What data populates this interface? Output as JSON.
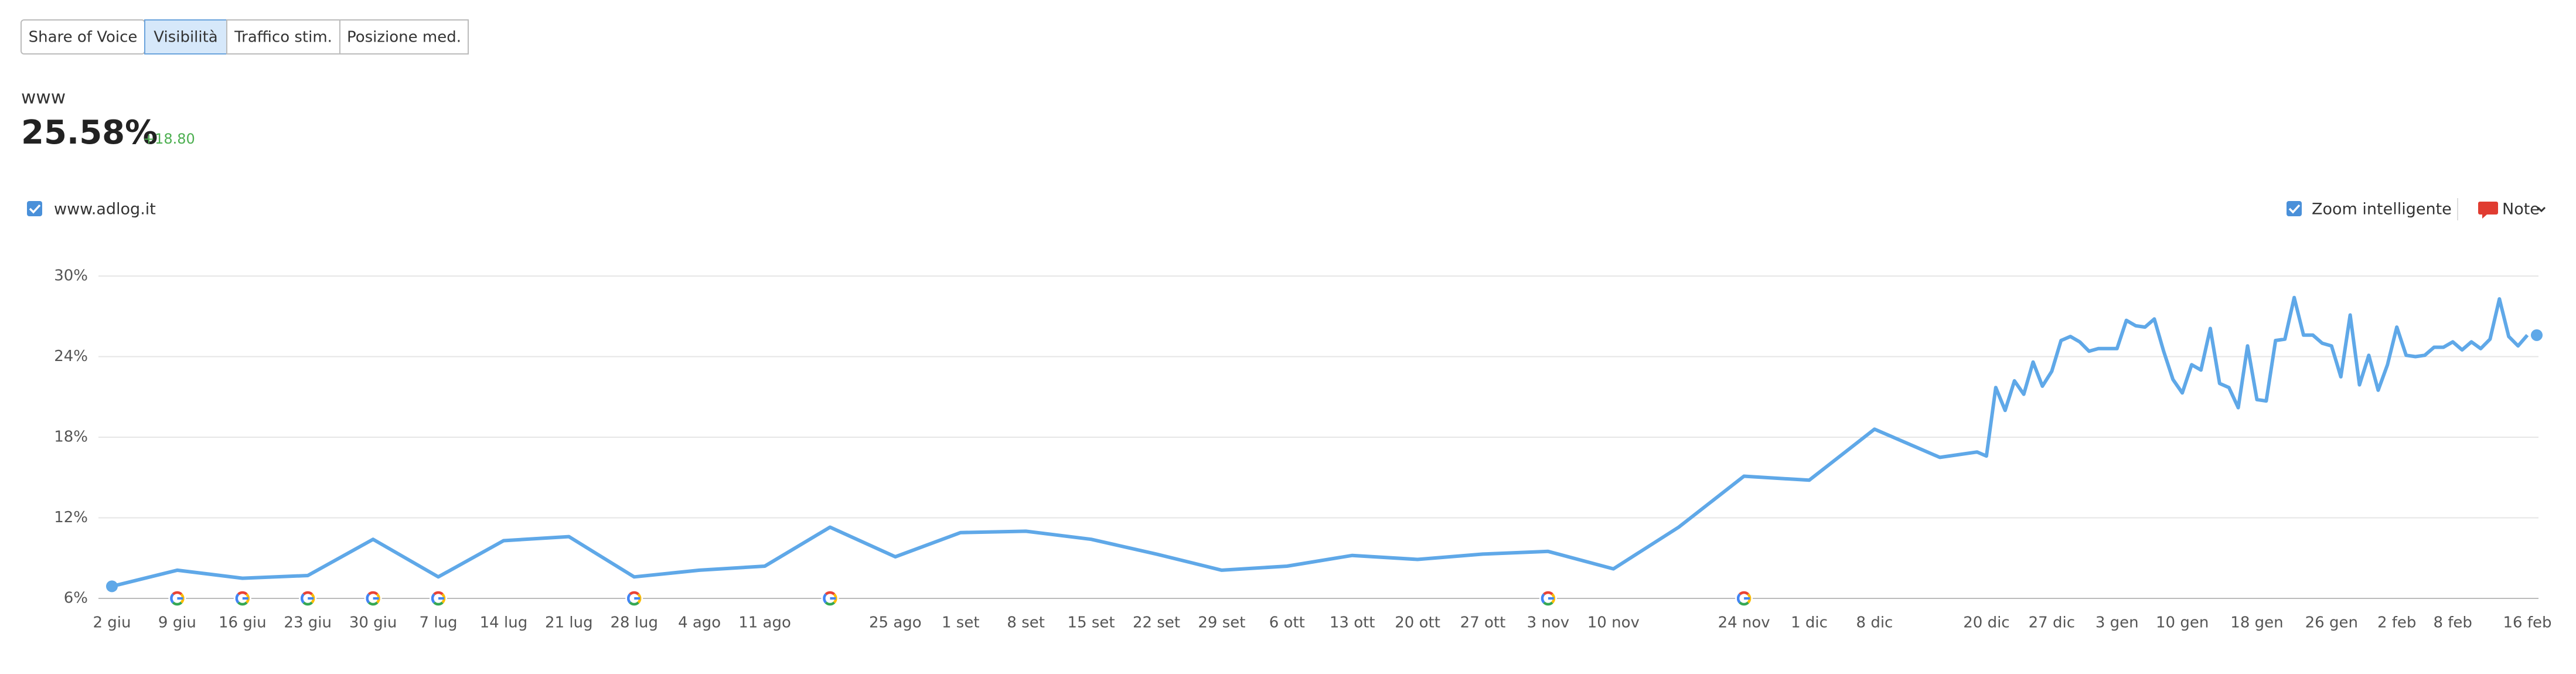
{
  "tabs": {
    "items": [
      "Share of Voice",
      "Visibilità",
      "Traffico stim.",
      "Posizione med."
    ],
    "active": 1
  },
  "header": {
    "label": "www",
    "value": "25.58%",
    "change": "+18.80"
  },
  "controls": {
    "zoom": "Zoom intelligente",
    "notes": "Note"
  },
  "chart_data": {
    "type": "line",
    "x": [
      "2 giu",
      "9 giu",
      "16 giu",
      "23 giu",
      "30 giu",
      "7 lug",
      "14 lug",
      "21 lug",
      "28 lug",
      "4 ago",
      "11 ago",
      "18 ago",
      "25 ago",
      "1 set",
      "8 set",
      "15 set",
      "22 set",
      "29 set",
      "6 ott",
      "13 ott",
      "20 ott",
      "27 ott",
      "3 nov",
      "10 nov",
      "17 nov",
      "24 nov",
      "1 dic",
      "8 dic",
      "15 dic",
      "19 dic",
      "20 dic",
      "21 dic",
      "22 dic",
      "23 dic",
      "24 dic",
      "25 dic",
      "26 dic",
      "27 dic",
      "28 dic",
      "29 dic",
      "30 dic",
      "31 dic",
      "1 gen",
      "2 gen",
      "3 gen",
      "4 gen",
      "5 gen",
      "6 gen",
      "7 gen",
      "8 gen",
      "9 gen",
      "10 gen",
      "11 gen",
      "12 gen",
      "13 gen",
      "14 gen",
      "15 gen",
      "16 gen",
      "17 gen",
      "18 gen",
      "19 gen",
      "20 gen",
      "21 gen",
      "22 gen",
      "23 gen",
      "24 gen",
      "25 gen",
      "26 gen",
      "27 gen",
      "28 gen",
      "29 gen",
      "30 gen",
      "31 gen",
      "1 feb",
      "2 feb",
      "3 feb",
      "4 feb",
      "5 feb",
      "6 feb",
      "7 feb",
      "8 feb",
      "9 feb",
      "10 feb",
      "11 feb",
      "12 feb",
      "13 feb",
      "14 feb",
      "15 feb",
      "16 feb"
    ],
    "series": [
      {
        "name": "www.adlog.it",
        "color": "#5fa8e8",
        "values": [
          6.9,
          8.1,
          7.5,
          7.7,
          10.4,
          7.6,
          10.3,
          10.6,
          7.6,
          8.1,
          8.4,
          11.3,
          9.1,
          10.9,
          11.0,
          10.4,
          9.3,
          8.1,
          8.4,
          9.2,
          8.9,
          9.3,
          9.5,
          8.2,
          11.3,
          15.1,
          14.8,
          18.6,
          16.5,
          16.9,
          16.6,
          21.7,
          20.0,
          22.2,
          21.2,
          23.6,
          21.8,
          22.9,
          25.2,
          25.5,
          25.1,
          24.4,
          24.6,
          24.6,
          24.6,
          26.7,
          26.3,
          26.2,
          26.8,
          24.4,
          22.3,
          21.3,
          23.4,
          23.0,
          26.1,
          22.0,
          21.7,
          20.2,
          24.8,
          20.8,
          20.7,
          25.2,
          25.3,
          28.4,
          25.6,
          25.6,
          25.0,
          24.8,
          22.5,
          27.1,
          21.9,
          24.1,
          21.5,
          23.4,
          26.2,
          24.1,
          24.0,
          24.1,
          24.7,
          24.7,
          25.1,
          24.5,
          25.1,
          24.6,
          25.3,
          28.3,
          25.5,
          24.8,
          25.6
        ]
      }
    ],
    "ylim": [
      6,
      30
    ],
    "yticks": [
      {
        "value": 6,
        "label": "6%"
      },
      {
        "value": 12,
        "label": "12%"
      },
      {
        "value": 18,
        "label": "18%"
      },
      {
        "value": 24,
        "label": "24%"
      },
      {
        "value": 30,
        "label": "30%"
      }
    ],
    "xticks": [
      "2 giu",
      "9 giu",
      "16 giu",
      "23 giu",
      "30 giu",
      "7 lug",
      "14 lug",
      "21 lug",
      "28 lug",
      "4 ago",
      "11 ago",
      "25 ago",
      "1 set",
      "8 set",
      "15 set",
      "22 set",
      "29 set",
      "6 ott",
      "13 ott",
      "20 ott",
      "27 ott",
      "3 nov",
      "10 nov",
      "24 nov",
      "1 dic",
      "8 dic",
      "20 dic",
      "27 dic",
      "3 gen",
      "10 gen",
      "18 gen",
      "26 gen",
      "2 feb",
      "8 feb",
      "16 feb"
    ],
    "grid": true,
    "google_updates": [
      "9 giu",
      "16 giu",
      "23 giu",
      "30 giu",
      "7 lug",
      "28 lug",
      "18 ago",
      "3 nov",
      "24 nov"
    ]
  }
}
